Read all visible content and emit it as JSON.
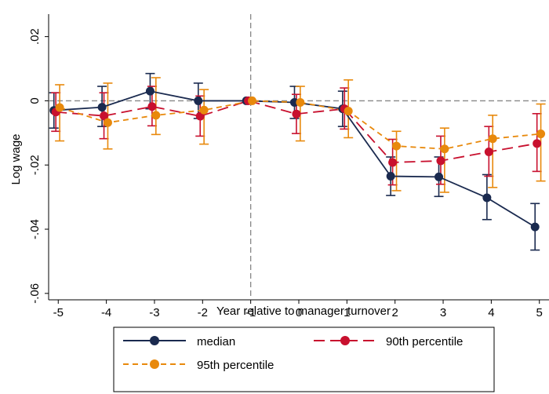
{
  "chart_data": {
    "type": "line",
    "xlabel": "Year relative to manager turnover",
    "ylabel": "Log wage",
    "x": [
      -5,
      -4,
      -3,
      -2,
      -1,
      0,
      1,
      2,
      3,
      4,
      5
    ],
    "x_ticks": [
      -5,
      -4,
      -3,
      -2,
      -1,
      0,
      1,
      2,
      3,
      4,
      5
    ],
    "x_tick_labels": [
      "-5",
      "-4",
      "-3",
      "-2",
      "-1",
      "0",
      "1",
      "2",
      "3",
      "4",
      "5"
    ],
    "y_ticks": [
      0.02,
      0,
      -0.02,
      -0.04,
      -0.06
    ],
    "y_tick_labels": [
      ".02",
      "0",
      "-.02",
      "-.04",
      "-.06"
    ],
    "xlim": [
      -5.2,
      5.2
    ],
    "ylim": [
      -0.062,
      0.027
    ],
    "reference_lines": {
      "vertical_x": -1,
      "horizontal_y": 0
    },
    "grid": false,
    "legend_position": "bottom",
    "series": [
      {
        "name": "median",
        "color": "#1a2a4f",
        "line_style": "solid",
        "values": [
          -0.003,
          -0.002,
          0.003,
          0.0,
          0.0,
          -0.0005,
          -0.0025,
          -0.0235,
          -0.0237,
          -0.0302,
          -0.0393
        ],
        "ci_low": [
          -0.0085,
          -0.008,
          -0.0025,
          -0.0055,
          0.0,
          -0.0055,
          -0.008,
          -0.0295,
          -0.0298,
          -0.037,
          -0.0465
        ],
        "ci_high": [
          0.0025,
          0.0045,
          0.0085,
          0.0055,
          0.0,
          0.0045,
          0.003,
          -0.0175,
          -0.0175,
          -0.023,
          -0.032
        ]
      },
      {
        "name": "90th percentile",
        "color": "#c8102e",
        "line_style": "long-dash",
        "values": [
          -0.0035,
          -0.0047,
          -0.0018,
          -0.0048,
          0.0,
          -0.0041,
          -0.0025,
          -0.0192,
          -0.0187,
          -0.0159,
          -0.0133
        ],
        "ci_low": [
          -0.0095,
          -0.0118,
          -0.0078,
          -0.011,
          0.0,
          -0.0102,
          -0.0088,
          -0.0262,
          -0.026,
          -0.0235,
          -0.022
        ],
        "ci_high": [
          0.0025,
          0.0025,
          0.0045,
          0.0015,
          0.0,
          0.002,
          0.004,
          -0.012,
          -0.011,
          -0.008,
          -0.004
        ]
      },
      {
        "name": "95th percentile",
        "color": "#e8890c",
        "line_style": "short-dash",
        "values": [
          -0.0021,
          -0.0068,
          -0.0045,
          -0.0029,
          0.0,
          -0.0005,
          -0.0032,
          -0.0141,
          -0.015,
          -0.0118,
          -0.0103
        ],
        "ci_low": [
          -0.0125,
          -0.015,
          -0.0105,
          -0.0135,
          0.0,
          -0.0125,
          -0.0115,
          -0.028,
          -0.0285,
          -0.027,
          -0.025
        ],
        "ci_high": [
          0.005,
          0.0055,
          0.0072,
          0.0035,
          0.0,
          0.0045,
          0.0065,
          -0.0095,
          -0.0085,
          -0.0045,
          -0.001
        ]
      }
    ]
  }
}
